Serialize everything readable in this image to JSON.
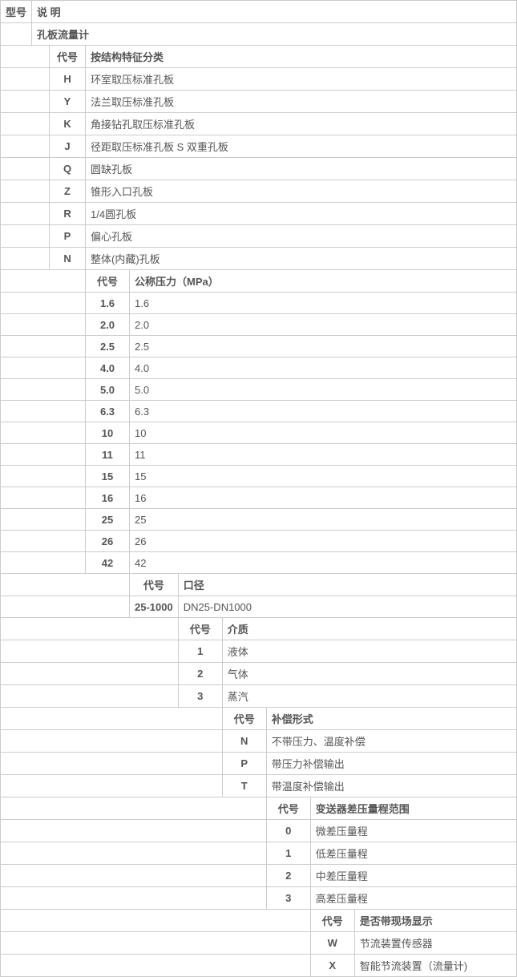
{
  "table": {
    "border_color": "#cccccc",
    "text_color": "#555555",
    "font_size": 13,
    "header_model": "型号",
    "header_desc": "说 明",
    "title": "孔板流量计",
    "col_code": "代号",
    "section1": {
      "header": "按结构特征分类",
      "rows": [
        {
          "code": "H",
          "desc": "环室取压标准孔板"
        },
        {
          "code": "Y",
          "desc": "法兰取压标准孔板"
        },
        {
          "code": "K",
          "desc": "角接钻孔取压标准孔板"
        },
        {
          "code": "J",
          "desc": "径距取压标准孔板 S 双重孔板"
        },
        {
          "code": "Q",
          "desc": "圆缺孔板"
        },
        {
          "code": "Z",
          "desc": "锥形入口孔板"
        },
        {
          "code": "R",
          "desc": "1/4圆孔板"
        },
        {
          "code": "P",
          "desc": "偏心孔板"
        },
        {
          "code": "N",
          "desc": "整体(内藏)孔板"
        }
      ]
    },
    "section2": {
      "header": "公称压力（MPa）",
      "rows": [
        {
          "code": "1.6",
          "desc": "1.6"
        },
        {
          "code": "2.0",
          "desc": "2.0"
        },
        {
          "code": "2.5",
          "desc": "2.5"
        },
        {
          "code": "4.0",
          "desc": "4.0"
        },
        {
          "code": "5.0",
          "desc": "5.0"
        },
        {
          "code": "6.3",
          "desc": "6.3"
        },
        {
          "code": "10",
          "desc": "10"
        },
        {
          "code": "11",
          "desc": "11"
        },
        {
          "code": "15",
          "desc": "15"
        },
        {
          "code": "16",
          "desc": "16"
        },
        {
          "code": "25",
          "desc": "25"
        },
        {
          "code": "26",
          "desc": "26"
        },
        {
          "code": "42",
          "desc": "42"
        }
      ]
    },
    "section3": {
      "header": "口径",
      "rows": [
        {
          "code": "25-1000",
          "desc": "DN25-DN1000"
        }
      ]
    },
    "section4": {
      "header": "介质",
      "rows": [
        {
          "code": "1",
          "desc": "液体"
        },
        {
          "code": "2",
          "desc": "气体"
        },
        {
          "code": "3",
          "desc": "蒸汽"
        }
      ]
    },
    "section5": {
      "header": "补偿形式",
      "rows": [
        {
          "code": "N",
          "desc": "不带压力、温度补偿"
        },
        {
          "code": "P",
          "desc": "带压力补偿输出"
        },
        {
          "code": "T",
          "desc": "带温度补偿输出"
        }
      ]
    },
    "section6": {
      "header": "变送器差压量程范围",
      "rows": [
        {
          "code": "0",
          "desc": "微差压量程"
        },
        {
          "code": "1",
          "desc": "低差压量程"
        },
        {
          "code": "2",
          "desc": "中差压量程"
        },
        {
          "code": "3",
          "desc": "高差压量程"
        }
      ]
    },
    "section7": {
      "header": "是否带现场显示",
      "rows": [
        {
          "code": "W",
          "desc": "节流装置传感器"
        },
        {
          "code": "X",
          "desc": "智能节流装置（流量计)"
        }
      ]
    }
  }
}
